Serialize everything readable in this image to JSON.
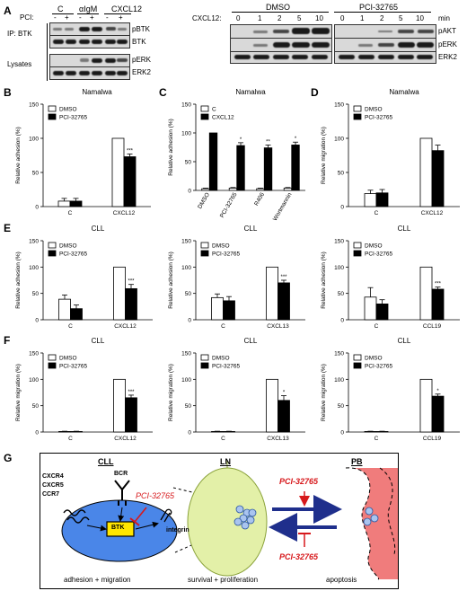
{
  "panels": {
    "A": "A",
    "B": "B",
    "C": "C",
    "D": "D",
    "E": "E",
    "F": "F",
    "G": "G"
  },
  "blotA_left": {
    "pci_label": "PCI:",
    "groups": [
      "C",
      "αIgM",
      "CXCL12"
    ],
    "pci_signs": [
      "-",
      "+",
      "-",
      "+",
      "-",
      "+"
    ],
    "ip_label": "IP: BTK",
    "lysates_label": "Lysates",
    "rows": [
      "pBTK",
      "BTK",
      "pERK",
      "ERK2"
    ]
  },
  "blotA_right": {
    "cxcl12_label": "CXCL12:",
    "groups": [
      "DMSO",
      "PCI-32765"
    ],
    "times": [
      "0",
      "1",
      "2",
      "5",
      "10",
      "0",
      "1",
      "2",
      "5",
      "10"
    ],
    "min_label": "min",
    "rows": [
      "pAKT",
      "pERK",
      "ERK2"
    ]
  },
  "chart_data": [
    {
      "id": "B",
      "type": "bar",
      "title": "Namalwa",
      "ylabel": "Relative adhesion (%)",
      "ylim": [
        0,
        150
      ],
      "yticks": [
        0,
        50,
        100,
        150
      ],
      "categories": [
        "C",
        "CXCL12"
      ],
      "series": [
        {
          "name": "DMSO",
          "values": [
            8,
            100
          ],
          "errors": [
            4,
            0
          ],
          "color": "#ffffff"
        },
        {
          "name": "PCI-32765",
          "values": [
            8,
            73
          ],
          "errors": [
            4,
            4
          ],
          "color": "#000000"
        }
      ],
      "annotations": [
        {
          "category": 1,
          "series": 1,
          "text": "***"
        }
      ],
      "legend": "top-left"
    },
    {
      "id": "C",
      "type": "bar",
      "title": "Namalwa",
      "ylabel": "Relative adhesion (%)",
      "ylim": [
        0,
        150
      ],
      "yticks": [
        0,
        50,
        100,
        150
      ],
      "categories": [
        "DMSO",
        "PCI-32765",
        "R406",
        "Wortmannin"
      ],
      "rotated": true,
      "series": [
        {
          "name": "C",
          "values": [
            3,
            4,
            3,
            4
          ],
          "errors": [
            1,
            1,
            1,
            1
          ],
          "color": "#ffffff"
        },
        {
          "name": "CXCL12",
          "values": [
            100,
            78,
            74,
            79
          ],
          "errors": [
            0,
            5,
            5,
            5
          ],
          "color": "#000000"
        }
      ],
      "annotations": [
        {
          "category": 1,
          "series": 1,
          "text": "*"
        },
        {
          "category": 2,
          "series": 1,
          "text": "**"
        },
        {
          "category": 3,
          "series": 1,
          "text": "*"
        }
      ],
      "legend": "top-left"
    },
    {
      "id": "D",
      "type": "bar",
      "title": "Namalwa",
      "ylabel": "Relative migration (%)",
      "ylim": [
        0,
        150
      ],
      "yticks": [
        0,
        50,
        100,
        150
      ],
      "categories": [
        "C",
        "CXCL12"
      ],
      "series": [
        {
          "name": "DMSO",
          "values": [
            19,
            100
          ],
          "errors": [
            5,
            0
          ],
          "color": "#ffffff"
        },
        {
          "name": "PCI-32765",
          "values": [
            20,
            82
          ],
          "errors": [
            5,
            8
          ],
          "color": "#000000"
        }
      ],
      "annotations": [],
      "legend": "top-left"
    },
    {
      "id": "E1",
      "type": "bar",
      "title": "CLL",
      "ylabel": "Relative adhesion (%)",
      "ylim": [
        0,
        150
      ],
      "yticks": [
        0,
        50,
        100,
        150
      ],
      "categories": [
        "C",
        "CXCL12"
      ],
      "series": [
        {
          "name": "DMSO",
          "values": [
            39,
            100
          ],
          "errors": [
            8,
            0
          ],
          "color": "#ffffff"
        },
        {
          "name": "PCI-32765",
          "values": [
            21,
            59
          ],
          "errors": [
            7,
            8
          ],
          "color": "#000000"
        }
      ],
      "annotations": [
        {
          "category": 1,
          "series": 1,
          "text": "***"
        }
      ],
      "legend": "top-left"
    },
    {
      "id": "E2",
      "type": "bar",
      "title": "CLL",
      "ylabel": "Relative adhesion (%)",
      "ylim": [
        0,
        150
      ],
      "yticks": [
        0,
        50,
        100,
        150
      ],
      "categories": [
        "C",
        "CXCL13"
      ],
      "series": [
        {
          "name": "DMSO",
          "values": [
            42,
            100
          ],
          "errors": [
            7,
            0
          ],
          "color": "#ffffff"
        },
        {
          "name": "PCI-32765",
          "values": [
            36,
            70
          ],
          "errors": [
            8,
            5
          ],
          "color": "#000000"
        }
      ],
      "annotations": [
        {
          "category": 1,
          "series": 1,
          "text": "***"
        }
      ],
      "legend": "top-left"
    },
    {
      "id": "E3",
      "type": "bar",
      "title": "CLL",
      "ylabel": "Relative adhesion (%)",
      "ylim": [
        0,
        150
      ],
      "yticks": [
        0,
        50,
        100,
        150
      ],
      "categories": [
        "C",
        "CCL19"
      ],
      "series": [
        {
          "name": "DMSO",
          "values": [
            43,
            100
          ],
          "errors": [
            18,
            0
          ],
          "color": "#ffffff"
        },
        {
          "name": "PCI-32765",
          "values": [
            30,
            58
          ],
          "errors": [
            8,
            4
          ],
          "color": "#000000"
        }
      ],
      "annotations": [
        {
          "category": 1,
          "series": 1,
          "text": "***"
        }
      ],
      "legend": "top-left"
    },
    {
      "id": "F1",
      "type": "bar",
      "title": "CLL",
      "ylabel": "Relative migration (%)",
      "ylim": [
        0,
        150
      ],
      "yticks": [
        0,
        50,
        100,
        150
      ],
      "categories": [
        "C",
        "CXCL12"
      ],
      "series": [
        {
          "name": "DMSO",
          "values": [
            1,
            100
          ],
          "errors": [
            0.5,
            0
          ],
          "color": "#ffffff"
        },
        {
          "name": "PCI-32765",
          "values": [
            1,
            65
          ],
          "errors": [
            0.5,
            5
          ],
          "color": "#000000"
        }
      ],
      "annotations": [
        {
          "category": 1,
          "series": 1,
          "text": "***"
        }
      ],
      "legend": "top-left"
    },
    {
      "id": "F2",
      "type": "bar",
      "title": "CLL",
      "ylabel": "Relative migration (%)",
      "ylim": [
        0,
        150
      ],
      "yticks": [
        0,
        50,
        100,
        150
      ],
      "categories": [
        "C",
        "CXCL13"
      ],
      "series": [
        {
          "name": "DMSO",
          "values": [
            1,
            100
          ],
          "errors": [
            0.5,
            0
          ],
          "color": "#ffffff"
        },
        {
          "name": "PCI-32765",
          "values": [
            1,
            60
          ],
          "errors": [
            0.5,
            9
          ],
          "color": "#000000"
        }
      ],
      "annotations": [
        {
          "category": 1,
          "series": 1,
          "text": "*"
        }
      ],
      "legend": "top-left"
    },
    {
      "id": "F3",
      "type": "bar",
      "title": "CLL",
      "ylabel": "Relative migration (%)",
      "ylim": [
        0,
        150
      ],
      "yticks": [
        0,
        50,
        100,
        150
      ],
      "categories": [
        "C",
        "CCL19"
      ],
      "series": [
        {
          "name": "DMSO",
          "values": [
            1,
            100
          ],
          "errors": [
            0.5,
            0
          ],
          "color": "#ffffff"
        },
        {
          "name": "PCI-32765",
          "values": [
            1,
            68
          ],
          "errors": [
            0.5,
            4
          ],
          "color": "#000000"
        }
      ],
      "annotations": [
        {
          "category": 1,
          "series": 1,
          "text": "*"
        }
      ],
      "legend": "top-left"
    }
  ],
  "diagramG": {
    "cll_title": "CLL",
    "ln_title": "LN",
    "pb_title": "PB",
    "receptors": [
      "CXCR4",
      "CXCR5",
      "CCR7"
    ],
    "bcr": "BCR",
    "btk": "BTK",
    "integrin": "integrin",
    "drug": "PCI-32765",
    "cll_caption": "adhesion + migration",
    "ln_caption": "survival + proliferation",
    "pb_caption": "apoptosis",
    "drug_color": "#d7191c",
    "btk_color": "#ffe600",
    "cell_color": "#4a86e8",
    "node_color": "#e3f0a8",
    "vessel_color": "#f07c7c",
    "arrow_color": "#1f2f8c"
  }
}
